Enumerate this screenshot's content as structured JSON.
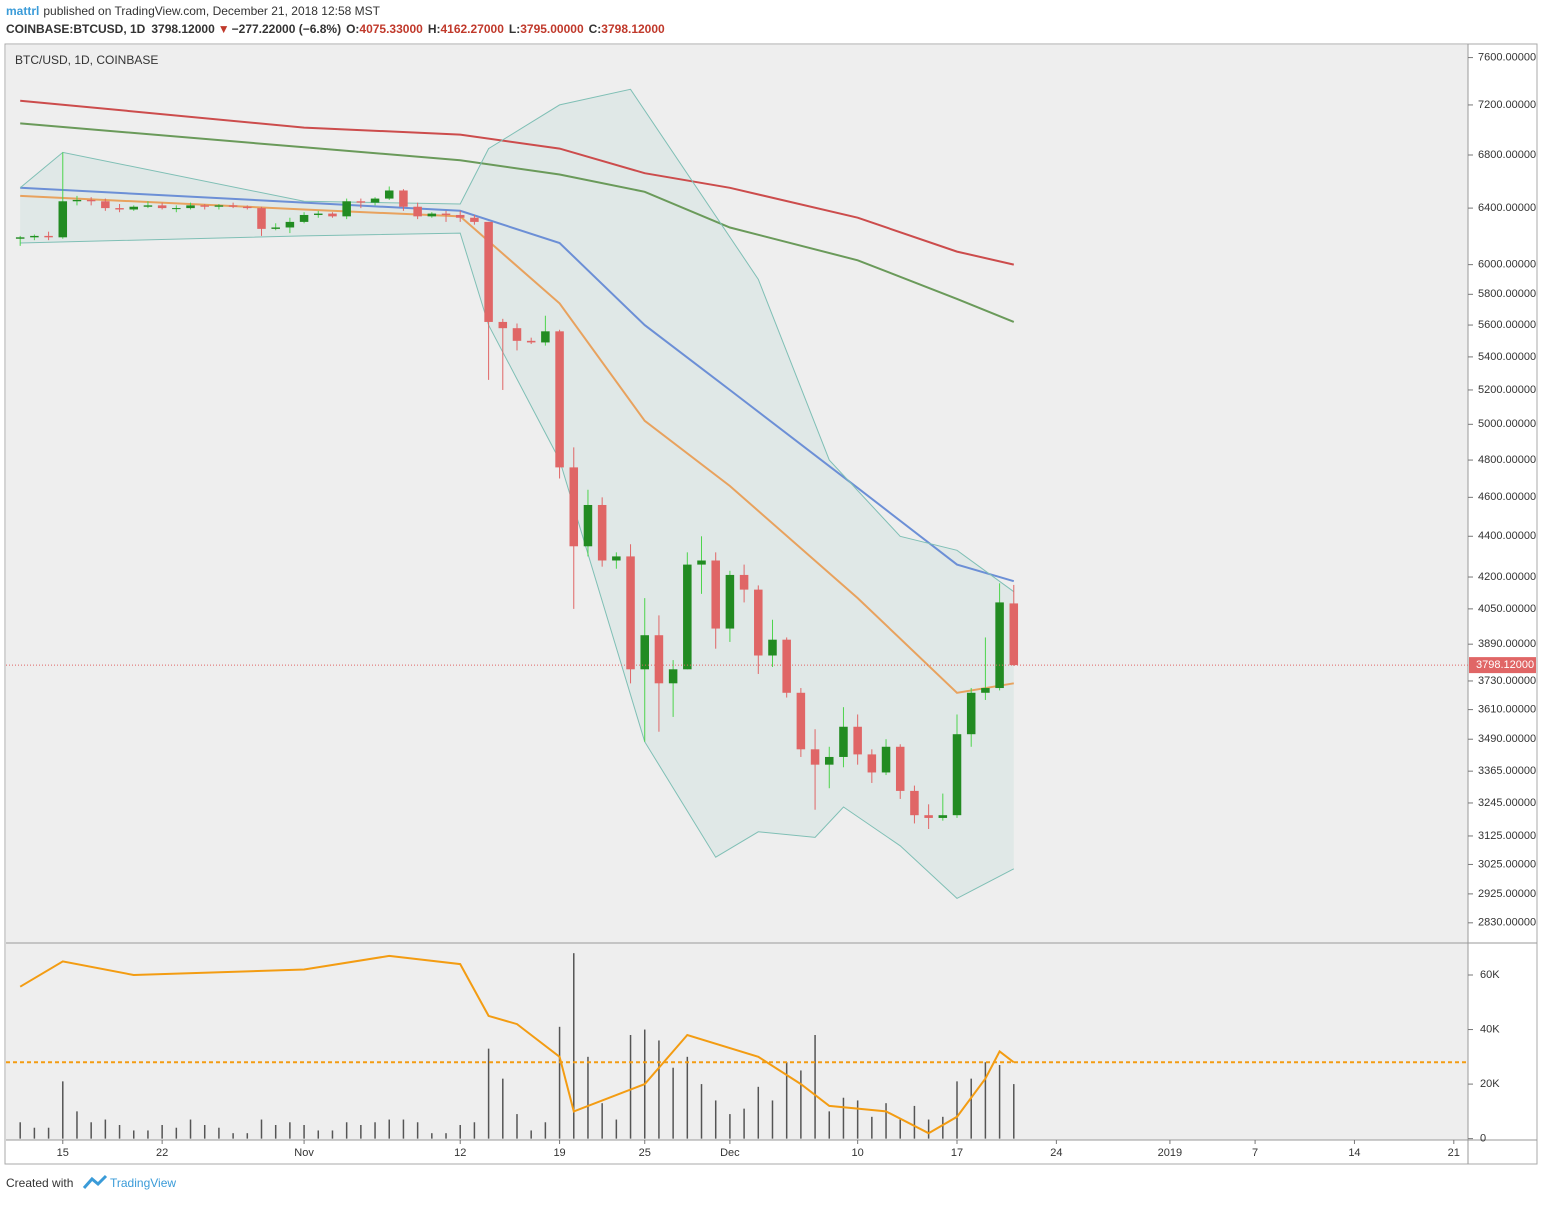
{
  "header": {
    "user": "mattrl",
    "published": "published on TradingView.com, December 21, 2018 12:58 MST",
    "symbol": "COINBASE:BTCUSD, 1D",
    "last": "3798.12000",
    "arrow": "▼",
    "change": "−277.22000 (−6.8%)",
    "o_label": "O:",
    "o": "4075.33000",
    "h_label": "H:",
    "h": "4162.27000",
    "l_label": "L:",
    "l": "3795.00000",
    "c_label": "C:",
    "c": "3798.12000"
  },
  "footer": {
    "created": "Created with",
    "brand": "TradingView"
  },
  "chart_data": {
    "type": "candlestick",
    "legend": "BTC/USD, 1D, COINBASE",
    "log_scale": true,
    "grid": false,
    "up_color": "#228b22",
    "up_wick": "#4cd44c",
    "down_color": "#e06666",
    "x": [
      "2018-10-12",
      "2018-10-13",
      "2018-10-14",
      "2018-10-15",
      "2018-10-16",
      "2018-10-17",
      "2018-10-18",
      "2018-10-19",
      "2018-10-20",
      "2018-10-21",
      "2018-10-22",
      "2018-10-23",
      "2018-10-24",
      "2018-10-25",
      "2018-10-26",
      "2018-10-27",
      "2018-10-28",
      "2018-10-29",
      "2018-10-30",
      "2018-10-31",
      "2018-11-01",
      "2018-11-02",
      "2018-11-03",
      "2018-11-04",
      "2018-11-05",
      "2018-11-06",
      "2018-11-07",
      "2018-11-08",
      "2018-11-09",
      "2018-11-10",
      "2018-11-11",
      "2018-11-12",
      "2018-11-13",
      "2018-11-14",
      "2018-11-15",
      "2018-11-16",
      "2018-11-17",
      "2018-11-18",
      "2018-11-19",
      "2018-11-20",
      "2018-11-21",
      "2018-11-22",
      "2018-11-23",
      "2018-11-24",
      "2018-11-25",
      "2018-11-26",
      "2018-11-27",
      "2018-11-28",
      "2018-11-29",
      "2018-11-30",
      "2018-12-01",
      "2018-12-02",
      "2018-12-03",
      "2018-12-04",
      "2018-12-05",
      "2018-12-06",
      "2018-12-07",
      "2018-12-08",
      "2018-12-09",
      "2018-12-10",
      "2018-12-11",
      "2018-12-12",
      "2018-12-13",
      "2018-12-14",
      "2018-12-15",
      "2018-12-16",
      "2018-12-17",
      "2018-12-18",
      "2018-12-19",
      "2018-12-20",
      "2018-12-21"
    ],
    "open": [
      6180,
      6190,
      6200,
      6190,
      6450,
      6460,
      6450,
      6400,
      6390,
      6410,
      6420,
      6400,
      6400,
      6420,
      6410,
      6420,
      6410,
      6400,
      6250,
      6260,
      6300,
      6350,
      6360,
      6340,
      6450,
      6440,
      6470,
      6530,
      6410,
      6340,
      6360,
      6350,
      6330,
      6300,
      5620,
      5580,
      5500,
      5490,
      5560,
      4760,
      4350,
      4560,
      4280,
      4300,
      3780,
      3930,
      3720,
      3780,
      4260,
      4280,
      3960,
      4210,
      4140,
      3840,
      3910,
      3680,
      3450,
      3390,
      3420,
      3540,
      3430,
      3360,
      3460,
      3290,
      3200,
      3190,
      3200,
      3510,
      3680,
      3700,
      4075.33
    ],
    "high": [
      6200,
      6210,
      6230,
      6820,
      6490,
      6480,
      6470,
      6430,
      6420,
      6450,
      6440,
      6420,
      6440,
      6430,
      6430,
      6440,
      6420,
      6410,
      6290,
      6330,
      6370,
      6380,
      6370,
      6470,
      6470,
      6480,
      6560,
      6540,
      6440,
      6370,
      6380,
      6380,
      6350,
      6300,
      5640,
      5610,
      5520,
      5660,
      5570,
      4870,
      4640,
      4600,
      4320,
      4360,
      4100,
      4020,
      3820,
      4320,
      4400,
      4320,
      4230,
      4260,
      4160,
      4000,
      3920,
      3700,
      3530,
      3460,
      3620,
      3590,
      3450,
      3490,
      3470,
      3310,
      3240,
      3280,
      3590,
      3700,
      3920,
      4170,
      4162.27
    ],
    "low": [
      6130,
      6170,
      6170,
      6180,
      6420,
      6420,
      6380,
      6370,
      6380,
      6400,
      6390,
      6370,
      6390,
      6390,
      6390,
      6400,
      6390,
      6200,
      6240,
      6220,
      6290,
      6330,
      6330,
      6320,
      6400,
      6420,
      6460,
      6380,
      6320,
      6330,
      6300,
      6300,
      6280,
      5260,
      5200,
      5440,
      5480,
      5470,
      4700,
      4050,
      4300,
      4250,
      4240,
      3720,
      3480,
      3520,
      3580,
      3780,
      4120,
      3870,
      3900,
      4080,
      3760,
      3790,
      3660,
      3420,
      3220,
      3300,
      3380,
      3390,
      3320,
      3350,
      3260,
      3170,
      3150,
      3180,
      3190,
      3460,
      3650,
      3690,
      3795
    ],
    "close": [
      6190,
      6200,
      6190,
      6450,
      6460,
      6450,
      6400,
      6390,
      6410,
      6420,
      6400,
      6400,
      6420,
      6410,
      6420,
      6410,
      6400,
      6250,
      6260,
      6300,
      6350,
      6360,
      6340,
      6450,
      6440,
      6470,
      6530,
      6410,
      6340,
      6360,
      6350,
      6330,
      6300,
      5620,
      5580,
      5500,
      5490,
      5560,
      4760,
      4350,
      4560,
      4280,
      4300,
      3780,
      3930,
      3720,
      3780,
      4260,
      4280,
      3960,
      4210,
      4140,
      3840,
      3910,
      3680,
      3450,
      3390,
      3420,
      3540,
      3430,
      3360,
      3460,
      3290,
      3200,
      3190,
      3200,
      3510,
      3680,
      3700,
      4080,
      3798.12
    ],
    "xlim": [
      "2018-10-11",
      "2019-01-22"
    ],
    "xticks": [
      {
        "value": "2018-10-15",
        "label": "15"
      },
      {
        "value": "2018-10-22",
        "label": "22"
      },
      {
        "value": "2018-11-01",
        "label": "Nov"
      },
      {
        "value": "2018-11-12",
        "label": "12"
      },
      {
        "value": "2018-11-19",
        "label": "19"
      },
      {
        "value": "2018-11-25",
        "label": "25"
      },
      {
        "value": "2018-12-01",
        "label": "Dec"
      },
      {
        "value": "2018-12-10",
        "label": "10"
      },
      {
        "value": "2018-12-17",
        "label": "17"
      },
      {
        "value": "2018-12-24",
        "label": "24"
      },
      {
        "value": "2019-01-01",
        "label": "2019"
      },
      {
        "value": "2019-01-07",
        "label": "7"
      },
      {
        "value": "2019-01-14",
        "label": "14"
      },
      {
        "value": "2019-01-21",
        "label": "21"
      }
    ],
    "ylim": [
      2775,
      7710
    ],
    "yticks": [
      {
        "value": 7600,
        "label": "7600.00000"
      },
      {
        "value": 7200,
        "label": "7200.00000"
      },
      {
        "value": 6800,
        "label": "6800.00000"
      },
      {
        "value": 6400,
        "label": "6400.00000"
      },
      {
        "value": 6000,
        "label": "6000.00000"
      },
      {
        "value": 5800,
        "label": "5800.00000"
      },
      {
        "value": 5600,
        "label": "5600.00000"
      },
      {
        "value": 5400,
        "label": "5400.00000"
      },
      {
        "value": 5200,
        "label": "5200.00000"
      },
      {
        "value": 5000,
        "label": "5000.00000"
      },
      {
        "value": 4800,
        "label": "4800.00000"
      },
      {
        "value": 4600,
        "label": "4600.00000"
      },
      {
        "value": 4400,
        "label": "4400.00000"
      },
      {
        "value": 4200,
        "label": "4200.00000"
      },
      {
        "value": 4050,
        "label": "4050.00000"
      },
      {
        "value": 3890,
        "label": "3890.00000"
      },
      {
        "value": 3730,
        "label": "3730.00000"
      },
      {
        "value": 3610,
        "label": "3610.00000"
      },
      {
        "value": 3490,
        "label": "3490.00000"
      },
      {
        "value": 3365,
        "label": "3365.00000"
      },
      {
        "value": 3245,
        "label": "3245.00000"
      },
      {
        "value": 3125,
        "label": "3125.00000"
      },
      {
        "value": 3025,
        "label": "3025.00000"
      },
      {
        "value": 2925,
        "label": "2925.00000"
      },
      {
        "value": 2830,
        "label": "2830.00000"
      }
    ],
    "last_price": 3798.12,
    "last_price_label": "3798.12000",
    "last_price_color": "#e06666",
    "overlays": [
      {
        "color": "#cc4c4c",
        "x": [
          "2018-10-12",
          "2018-11-01",
          "2018-11-12",
          "2018-11-19",
          "2018-11-25",
          "2018-12-01",
          "2018-12-10",
          "2018-12-17",
          "2018-12-21"
        ],
        "values": [
          7235,
          7016,
          6960,
          6850,
          6660,
          6550,
          6330,
          6090,
          6000
        ]
      },
      {
        "color": "#6a9a5a",
        "x": [
          "2018-10-12",
          "2018-11-01",
          "2018-11-12",
          "2018-11-19",
          "2018-11-25",
          "2018-12-01",
          "2018-12-10",
          "2018-12-17",
          "2018-12-21"
        ],
        "values": [
          7050,
          6860,
          6760,
          6650,
          6520,
          6260,
          6030,
          5770,
          5620
        ]
      },
      {
        "color": "#6c8fd6",
        "x": [
          "2018-10-12",
          "2018-11-01",
          "2018-11-12",
          "2018-11-19",
          "2018-11-25",
          "2018-12-01",
          "2018-12-10",
          "2018-12-17",
          "2018-12-21"
        ],
        "values": [
          6550,
          6440,
          6380,
          6150,
          5600,
          5200,
          4650,
          4260,
          4180
        ]
      },
      {
        "color": "#e8a25e",
        "x": [
          "2018-10-12",
          "2018-11-01",
          "2018-11-12",
          "2018-11-19",
          "2018-11-25",
          "2018-12-01",
          "2018-12-10",
          "2018-12-17",
          "2018-12-21"
        ],
        "values": [
          6490,
          6390,
          6340,
          5740,
          5020,
          4660,
          4100,
          3680,
          3720
        ]
      },
      {
        "color": "#7fbfb5",
        "x": [
          "2018-10-12",
          "2018-10-15",
          "2018-11-01",
          "2018-11-12",
          "2018-11-14",
          "2018-11-19",
          "2018-11-24",
          "2018-12-03",
          "2018-12-08",
          "2018-12-13",
          "2018-12-17",
          "2018-12-21"
        ],
        "values": [
          6550,
          6820,
          6450,
          6430,
          6850,
          7200,
          7330,
          5900,
          4800,
          4400,
          4330,
          4130
        ]
      },
      {
        "color": "#7fbfb5",
        "x": [
          "2018-10-12",
          "2018-11-01",
          "2018-11-12",
          "2018-11-14",
          "2018-11-19",
          "2018-11-25",
          "2018-11-30",
          "2018-12-03",
          "2018-12-07",
          "2018-12-09",
          "2018-12-13",
          "2018-12-17",
          "2018-12-21"
        ],
        "values": [
          6150,
          6200,
          6220,
          5600,
          4800,
          3480,
          3050,
          3140,
          3120,
          3230,
          3090,
          2910,
          3010
        ]
      }
    ],
    "volume": {
      "color": "#555555",
      "values": [
        6000,
        4000,
        4000,
        21000,
        10000,
        6000,
        7000,
        5000,
        3000,
        3000,
        5000,
        4000,
        7000,
        5000,
        4000,
        2000,
        2000,
        7000,
        5000,
        6000,
        5000,
        3000,
        3000,
        6000,
        5000,
        6000,
        7000,
        7000,
        6000,
        2000,
        2000,
        5000,
        6000,
        33000,
        22000,
        9000,
        3000,
        6000,
        41000,
        68000,
        30000,
        13000,
        7000,
        38000,
        40000,
        36000,
        26000,
        30000,
        20000,
        14000,
        9000,
        11000,
        19000,
        14000,
        28000,
        25000,
        38000,
        10000,
        15000,
        14000,
        8000,
        13000,
        7000,
        12000,
        7000,
        8000,
        21000,
        22000,
        28000,
        27000,
        20000
      ],
      "ylim": [
        -500,
        71000
      ],
      "yticks": [
        {
          "value": 60000,
          "label": "60K"
        },
        {
          "value": 40000,
          "label": "40K"
        },
        {
          "value": 20000,
          "label": "20K"
        },
        0
      ],
      "ma": {
        "color": "#f39c12",
        "x": [
          "2018-10-12",
          "2018-10-15",
          "2018-10-20",
          "2018-11-01",
          "2018-11-07",
          "2018-11-12",
          "2018-11-14",
          "2018-11-16",
          "2018-11-19",
          "2018-11-20",
          "2018-11-25",
          "2018-11-28",
          "2018-12-03",
          "2018-12-06",
          "2018-12-08",
          "2018-12-12",
          "2018-12-15",
          "2018-12-17",
          "2018-12-19",
          "2018-12-20",
          "2018-12-21"
        ],
        "values": [
          55700,
          65000,
          60000,
          62000,
          67000,
          64000,
          45000,
          42000,
          30000,
          10000,
          20000,
          38000,
          30000,
          20000,
          12000,
          10000,
          2000,
          8000,
          22000,
          32000,
          28000
        ]
      },
      "level": 28000,
      "level_color": "#f39c12"
    }
  }
}
